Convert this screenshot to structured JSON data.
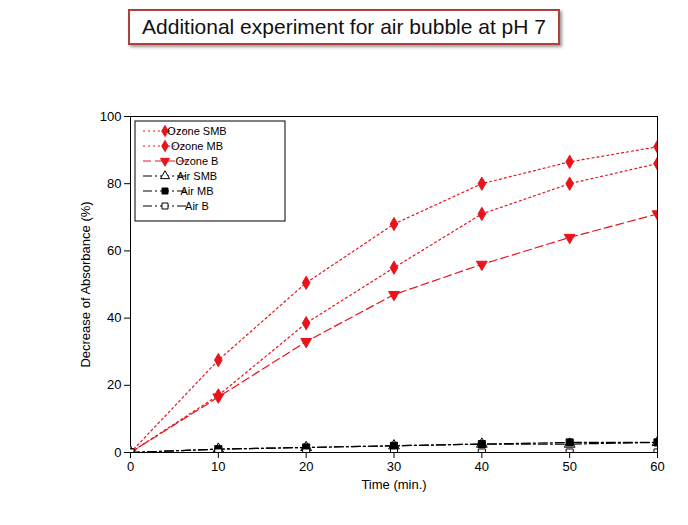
{
  "chart_data": {
    "type": "line",
    "title": "Additional experiment for air bubble at pH 7",
    "x_label": "Time (min.)",
    "y_label": "Decrease of Absorbance (%)",
    "x": [
      0,
      10,
      20,
      30,
      40,
      50,
      60
    ],
    "xlim": [
      0,
      60
    ],
    "xticks": [
      0,
      10,
      20,
      30,
      40,
      50,
      60
    ],
    "ylim": [
      0,
      100
    ],
    "yticks": [
      0,
      20,
      40,
      60,
      80,
      100
    ],
    "grid": false,
    "legend": "top-left",
    "series": [
      {
        "name": "Ozone SMB",
        "color": "#e8141c",
        "marker": "diamond",
        "line_style": "dotted",
        "values": [
          0,
          27.5,
          50.5,
          68,
          80,
          86.5,
          91
        ]
      },
      {
        "name": "Ozone MB",
        "color": "#e8141c",
        "marker": "diamond",
        "line_style": "dotted",
        "values": [
          0,
          17,
          38.5,
          55,
          71,
          80,
          86
        ]
      },
      {
        "name": "Ozone B",
        "color": "#e8141c",
        "marker": "triangle-down",
        "line_style": "dashed",
        "values": [
          0,
          16.5,
          33,
          47,
          56,
          64,
          71
        ]
      },
      {
        "name": "Air SMB",
        "color": "#000000",
        "marker": "open-triangle",
        "line_style": "dashdot",
        "values": [
          0,
          1,
          1.5,
          2,
          2.5,
          2.5,
          3
        ]
      },
      {
        "name": "Air MB",
        "color": "#000000",
        "marker": "square",
        "line_style": "dashdot",
        "values": [
          0,
          1,
          1.5,
          2,
          2.5,
          3,
          3
        ]
      },
      {
        "name": "Air B",
        "color": "#000000",
        "marker": "open-square",
        "line_style": "dashdot",
        "values": [
          0,
          0,
          0,
          0,
          0,
          0,
          0
        ]
      }
    ]
  }
}
